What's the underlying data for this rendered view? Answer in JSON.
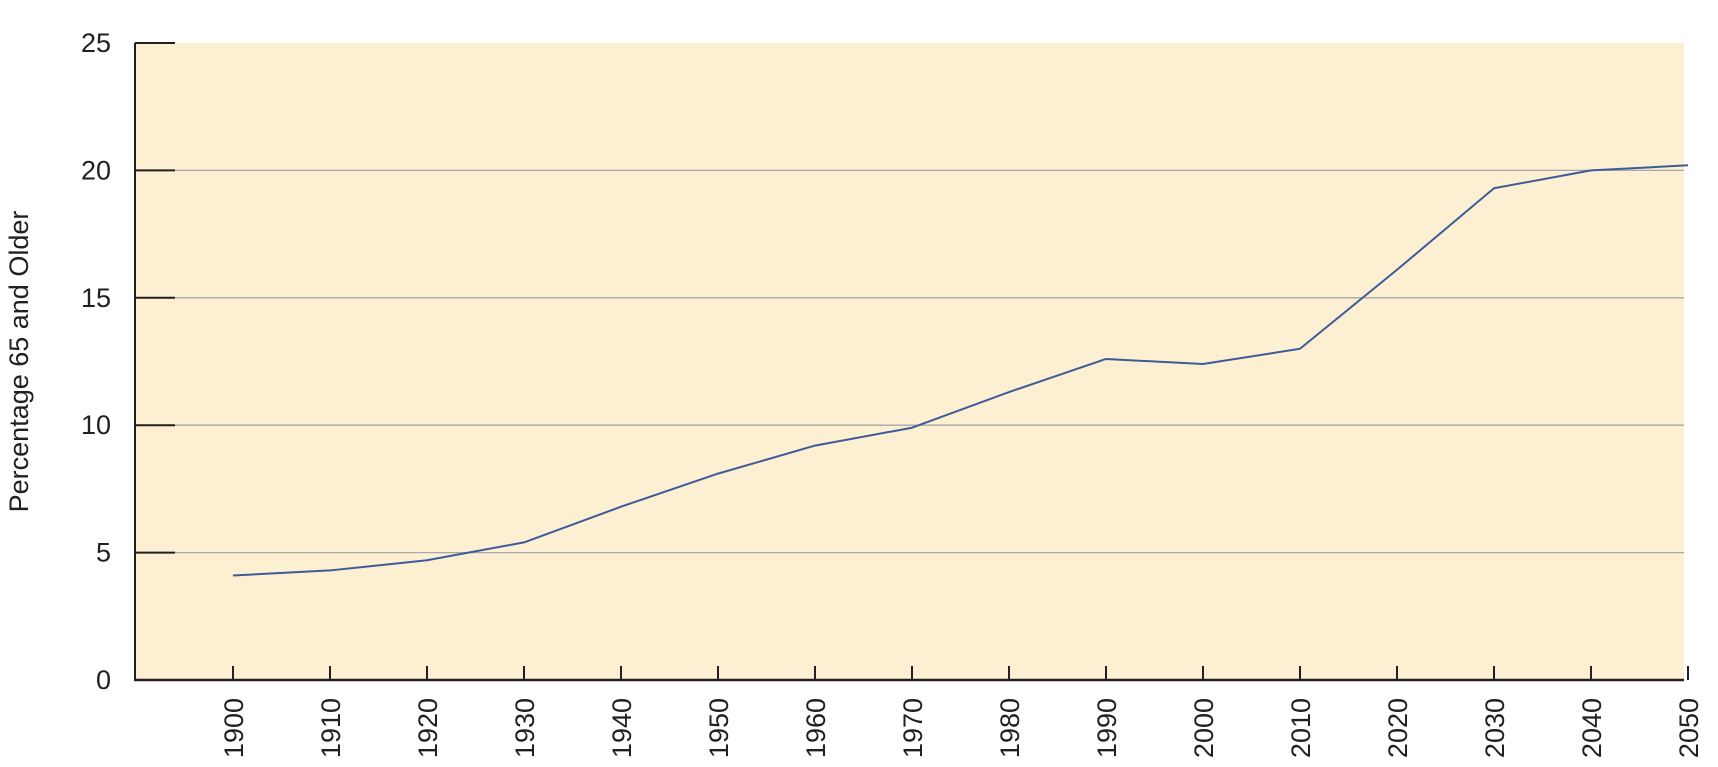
{
  "chart_data": {
    "type": "line",
    "title": "",
    "xlabel": "",
    "ylabel": "Percentage 65 and Older",
    "x": [
      "1900",
      "1910",
      "1920",
      "1930",
      "1940",
      "1950",
      "1960",
      "1970",
      "1980",
      "1990",
      "2000",
      "2010",
      "2020",
      "2030",
      "2040",
      "2050"
    ],
    "series": [
      {
        "values": [
          4.1,
          4.3,
          4.7,
          5.4,
          6.8,
          8.1,
          9.2,
          9.9,
          11.3,
          12.6,
          12.4,
          13.0,
          16.1,
          19.3,
          20.0,
          20.2
        ]
      }
    ],
    "yticks": [
      0,
      5,
      10,
      15,
      20,
      25
    ],
    "ylim": [
      0,
      25
    ],
    "grid": true,
    "legend": "none",
    "colors": {
      "line": "#3d5a9a",
      "plot_background": "#fdf0d2",
      "gridline": "#a8a8a8",
      "axis": "#231f20"
    }
  }
}
